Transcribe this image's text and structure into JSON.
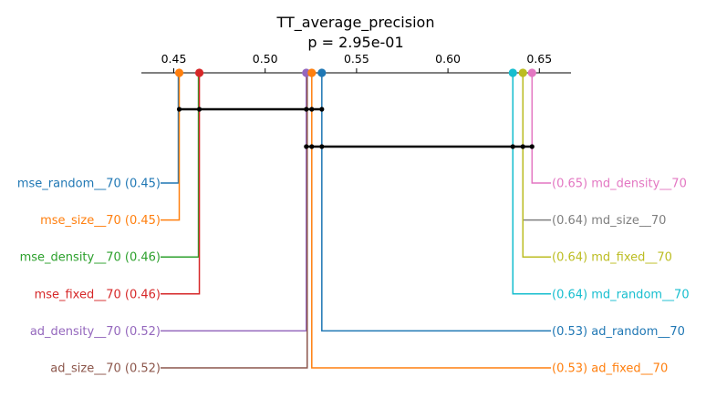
{
  "chart_data": {
    "type": "critical-difference",
    "title": "TT_average_precision",
    "subtitle": "p = 2.95e-01",
    "axis": {
      "position": "top",
      "ticks": [
        "0.45",
        "0.50",
        "0.55",
        "0.60",
        "0.65"
      ],
      "tick_values": [
        0.45,
        0.5,
        0.55,
        0.6,
        0.65
      ],
      "xlim": [
        0.432,
        0.667
      ]
    },
    "left_methods": [
      {
        "name": "mse_random__70",
        "value": 0.45,
        "value_exact": 0.4525,
        "label": "mse_random__70 (0.45)",
        "color": "#1f77b4"
      },
      {
        "name": "mse_size__70",
        "value": 0.45,
        "value_exact": 0.453,
        "label": "mse_size__70 (0.45)",
        "color": "#ff7f0e"
      },
      {
        "name": "mse_density__70",
        "value": 0.46,
        "value_exact": 0.4635,
        "label": "mse_density__70 (0.46)",
        "color": "#2ca02c"
      },
      {
        "name": "mse_fixed__70",
        "value": 0.46,
        "value_exact": 0.464,
        "label": "mse_fixed__70 (0.46)",
        "color": "#d62728"
      },
      {
        "name": "ad_density__70",
        "value": 0.52,
        "value_exact": 0.5225,
        "label": "ad_density__70 (0.52)",
        "color": "#9467bd"
      },
      {
        "name": "ad_size__70",
        "value": 0.52,
        "value_exact": 0.523,
        "label": "ad_size__70 (0.52)",
        "color": "#8c564b"
      }
    ],
    "right_methods": [
      {
        "name": "md_density__70",
        "value": 0.65,
        "value_exact": 0.646,
        "label": "(0.65) md_density__70",
        "color": "#e377c2"
      },
      {
        "name": "md_size__70",
        "value": 0.64,
        "value_exact": 0.641,
        "label": "(0.64) md_size__70",
        "color": "#7f7f7f"
      },
      {
        "name": "md_fixed__70",
        "value": 0.64,
        "value_exact": 0.641,
        "label": "(0.64) md_fixed__70",
        "color": "#bcbd22"
      },
      {
        "name": "md_random__70",
        "value": 0.64,
        "value_exact": 0.6355,
        "label": "(0.64) md_random__70",
        "color": "#17becf"
      },
      {
        "name": "ad_random__70",
        "value": 0.53,
        "value_exact": 0.531,
        "label": "(0.53) ad_random__70",
        "color": "#1f77b4"
      },
      {
        "name": "ad_fixed__70",
        "value": 0.53,
        "value_exact": 0.5255,
        "label": "(0.53) ad_fixed__70",
        "color": "#ff7f0e"
      }
    ],
    "cliques": [
      {
        "members": [
          "mse_size__70",
          "mse_fixed__70",
          "ad_density__70",
          "ad_fixed__70",
          "ad_random__70"
        ],
        "from": 0.453,
        "to": 0.531
      },
      {
        "members": [
          "ad_density__70",
          "ad_fixed__70",
          "ad_random__70",
          "md_random__70",
          "md_fixed__70",
          "md_density__70"
        ],
        "from": 0.5225,
        "to": 0.646
      }
    ],
    "axis_dots": [
      {
        "value": 0.453,
        "color": "#ff7f0e"
      },
      {
        "value": 0.464,
        "color": "#d62728"
      },
      {
        "value": 0.5225,
        "color": "#9467bd"
      },
      {
        "value": 0.5255,
        "color": "#ff7f0e"
      },
      {
        "value": 0.531,
        "color": "#1f77b4"
      },
      {
        "value": 0.6355,
        "color": "#17becf"
      },
      {
        "value": 0.641,
        "color": "#bcbd22"
      },
      {
        "value": 0.646,
        "color": "#e377c2"
      }
    ]
  }
}
